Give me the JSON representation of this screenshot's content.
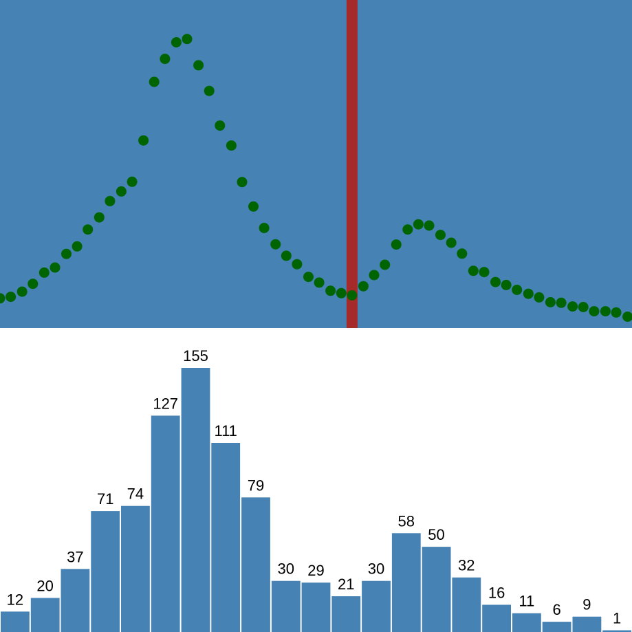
{
  "colors": {
    "panel_background": "#4682b4",
    "dot": "#006400",
    "divider": "#a52a2a",
    "bar": "#4682b4",
    "bar_label": "#000000",
    "page_background": "#ffffff"
  },
  "chart_data": [
    {
      "type": "scatter",
      "description_kind": "density-curve",
      "y_range": [
        0,
        1
      ],
      "divider_x": 0.557,
      "x_range": [
        0,
        1
      ],
      "points": [
        [
          0.0,
          0.078
        ],
        [
          0.017,
          0.083
        ],
        [
          0.035,
          0.1
        ],
        [
          0.052,
          0.126
        ],
        [
          0.07,
          0.163
        ],
        [
          0.087,
          0.18
        ],
        [
          0.105,
          0.225
        ],
        [
          0.122,
          0.25
        ],
        [
          0.139,
          0.306
        ],
        [
          0.157,
          0.346
        ],
        [
          0.174,
          0.4
        ],
        [
          0.192,
          0.432
        ],
        [
          0.209,
          0.464
        ],
        [
          0.227,
          0.601
        ],
        [
          0.244,
          0.795
        ],
        [
          0.261,
          0.871
        ],
        [
          0.279,
          0.926
        ],
        [
          0.296,
          0.937
        ],
        [
          0.314,
          0.85
        ],
        [
          0.331,
          0.765
        ],
        [
          0.348,
          0.65
        ],
        [
          0.366,
          0.584
        ],
        [
          0.383,
          0.463
        ],
        [
          0.401,
          0.382
        ],
        [
          0.418,
          0.311
        ],
        [
          0.436,
          0.257
        ],
        [
          0.453,
          0.219
        ],
        [
          0.47,
          0.191
        ],
        [
          0.488,
          0.149
        ],
        [
          0.505,
          0.13
        ],
        [
          0.523,
          0.103
        ],
        [
          0.54,
          0.095
        ],
        [
          0.557,
          0.088
        ],
        [
          0.575,
          0.118
        ],
        [
          0.592,
          0.155
        ],
        [
          0.609,
          0.189
        ],
        [
          0.627,
          0.256
        ],
        [
          0.645,
          0.306
        ],
        [
          0.662,
          0.323
        ],
        [
          0.679,
          0.319
        ],
        [
          0.697,
          0.288
        ],
        [
          0.714,
          0.262
        ],
        [
          0.731,
          0.226
        ],
        [
          0.749,
          0.169
        ],
        [
          0.766,
          0.165
        ],
        [
          0.784,
          0.132
        ],
        [
          0.801,
          0.122
        ],
        [
          0.818,
          0.106
        ],
        [
          0.836,
          0.093
        ],
        [
          0.853,
          0.081
        ],
        [
          0.871,
          0.065
        ],
        [
          0.888,
          0.063
        ],
        [
          0.906,
          0.051
        ],
        [
          0.923,
          0.049
        ],
        [
          0.94,
          0.035
        ],
        [
          0.958,
          0.035
        ],
        [
          0.975,
          0.031
        ],
        [
          0.993,
          0.017
        ]
      ]
    },
    {
      "type": "bar",
      "values": [
        12,
        20,
        37,
        71,
        74,
        127,
        155,
        111,
        79,
        30,
        29,
        21,
        30,
        58,
        50,
        32,
        16,
        11,
        6,
        9,
        1
      ],
      "data_labels": [
        "12",
        "20",
        "37",
        "71",
        "74",
        "127",
        "155",
        "111",
        "79",
        "30",
        "29",
        "21",
        "30",
        "58",
        "50",
        "32",
        "16",
        "11",
        "6",
        "9",
        "1"
      ],
      "ylim": [
        0,
        155
      ]
    }
  ]
}
